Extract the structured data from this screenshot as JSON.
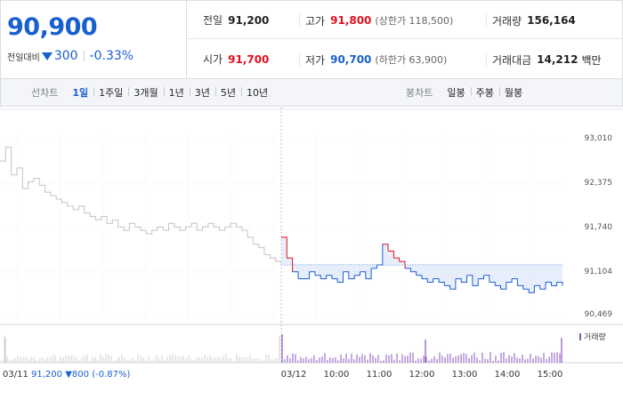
{
  "quote": {
    "price": "90,900",
    "change_label": "전일대비",
    "change_value": "300",
    "change_pct": "-0.33%",
    "prev_close_label": "전일",
    "prev_close": "91,200",
    "high_label": "고가",
    "high": "91,800",
    "upper_limit_label": "(상한가 118,500)",
    "volume_label": "거래량",
    "volume": "156,164",
    "open_label": "시가",
    "open": "91,700",
    "low_label": "저가",
    "low": "90,700",
    "lower_limit_label": "(하한가 63,900)",
    "trade_value_label": "거래대금",
    "trade_value": "14,212",
    "trade_value_unit": "백만"
  },
  "tabs": {
    "line_title": "선차트",
    "line_items": [
      "1일",
      "1주일",
      "3개월",
      "1년",
      "3년",
      "5년",
      "10년"
    ],
    "line_active": "1일",
    "candle_title": "봉차트",
    "candle_items": [
      "일봉",
      "주봉",
      "월봉"
    ]
  },
  "colors": {
    "up": "#e0101e",
    "down": "#1a5fd0",
    "prev_day_line": "#c4c4c4",
    "volume": "#8a56c2"
  },
  "chart_data": {
    "type": "line",
    "y_ticks": [
      "93,010",
      "92,375",
      "91,740",
      "91,104",
      "90,469"
    ],
    "ylim": [
      90469,
      93010
    ],
    "reference_value": 91200,
    "x_ticks": [
      "03/11",
      "03/12",
      "10:00",
      "11:00",
      "12:00",
      "13:00",
      "14:00",
      "15:00"
    ],
    "prev_day_info": {
      "date": "03/11",
      "close": "91,200",
      "change": "800",
      "change_pct": "(-0.87%)"
    },
    "volume_legend": "거래량",
    "series": [
      {
        "name": "",
        "day": "03/11",
        "x": [
          0,
          2,
          4,
          6,
          8,
          10,
          12,
          14,
          16,
          18,
          20,
          22,
          24,
          26,
          28,
          30,
          32,
          34,
          36,
          38,
          40,
          42,
          44,
          46,
          48,
          50,
          52,
          54,
          56,
          58,
          60,
          62,
          64,
          66,
          68,
          70,
          72,
          74,
          76,
          78,
          80,
          82,
          84,
          86,
          88,
          90,
          92,
          94,
          96,
          98,
          100
        ],
        "values": [
          92700,
          92900,
          92500,
          92600,
          92300,
          92400,
          92450,
          92350,
          92250,
          92200,
          92150,
          92100,
          92050,
          92000,
          92050,
          91950,
          91900,
          91850,
          91900,
          91800,
          91850,
          91750,
          91700,
          91800,
          91750,
          91700,
          91650,
          91700,
          91750,
          91700,
          91800,
          91750,
          91700,
          91750,
          91800,
          91700,
          91750,
          91800,
          91750,
          91700,
          91750,
          91800,
          91750,
          91700,
          91600,
          91500,
          91450,
          91350,
          91300,
          91250,
          91200
        ]
      },
      {
        "name": "",
        "day": "03/12",
        "x": [
          0,
          2,
          4,
          6,
          8,
          10,
          12,
          14,
          16,
          18,
          20,
          22,
          24,
          26,
          28,
          30,
          32,
          34,
          36,
          38,
          40,
          42,
          44,
          46,
          48,
          50,
          52,
          54,
          56,
          58,
          60,
          62,
          64,
          66,
          68,
          70,
          72,
          74,
          76,
          78,
          80,
          82,
          84,
          86,
          88,
          90,
          92,
          94,
          96,
          98,
          100
        ],
        "values": [
          91600,
          91300,
          91100,
          91000,
          91000,
          91100,
          91050,
          91000,
          91050,
          91000,
          90950,
          91100,
          91000,
          91050,
          91100,
          91000,
          91150,
          91200,
          91500,
          91400,
          91300,
          91250,
          91150,
          91100,
          91050,
          91000,
          90950,
          91000,
          90950,
          90900,
          90850,
          91000,
          90950,
          91050,
          90900,
          91000,
          91050,
          90950,
          90900,
          90850,
          90950,
          91000,
          90900,
          90850,
          90800,
          90900,
          90850,
          90950,
          90900,
          90950,
          90900
        ]
      }
    ]
  }
}
